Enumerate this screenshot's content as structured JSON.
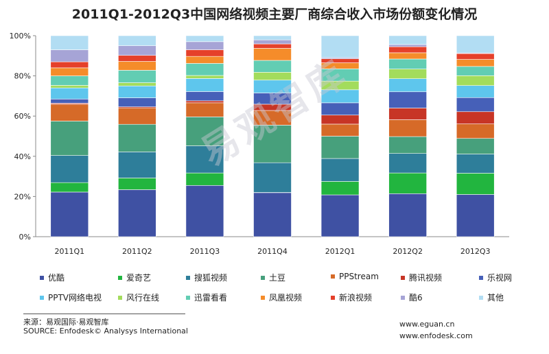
{
  "title": "2011Q1-2012Q3中国网络视频主要厂商综合收入市场份额变化情况",
  "watermark": "易观智库",
  "footer": {
    "source_cn": "来源：易观国际·易观智库",
    "source_en": "SOURCE: Enfodesk© Analysys International",
    "web1": "www.eguan.cn",
    "web2": "www.enfodesk.com"
  },
  "chart_data": {
    "type": "bar",
    "stacked": true,
    "percent": true,
    "categories": [
      "2011Q1",
      "2011Q2",
      "2011Q3",
      "2011Q4",
      "2012Q1",
      "2012Q2",
      "2012Q3"
    ],
    "y_ticks": [
      "0%",
      "20%",
      "40%",
      "60%",
      "80%",
      "100%"
    ],
    "ylim": [
      0,
      100
    ],
    "grid": false,
    "legend_position": "bottom",
    "series": [
      {
        "name": "优酷",
        "color": "#3F51A3",
        "values": [
          22.2,
          23.4,
          25.5,
          21.9,
          20.8,
          21.4,
          21.0
        ]
      },
      {
        "name": "爱奇艺",
        "color": "#22B53F",
        "values": [
          4.7,
          5.8,
          6.2,
          0.1,
          6.7,
          10.3,
          10.6
        ]
      },
      {
        "name": "搜狐视频",
        "color": "#2E7E9A",
        "values": [
          13.5,
          13.0,
          13.5,
          14.8,
          11.4,
          9.7,
          9.5
        ]
      },
      {
        "name": "土豆",
        "color": "#47A07C",
        "values": [
          17.1,
          13.7,
          14.4,
          18.7,
          11.1,
          8.4,
          7.8
        ]
      },
      {
        "name": "PPStream",
        "color": "#D66A28",
        "values": [
          8.4,
          8.2,
          7.0,
          7.3,
          6.0,
          8.4,
          7.2
        ]
      },
      {
        "name": "腾讯视频",
        "color": "#C73526",
        "values": [
          0.5,
          0.5,
          1.0,
          3.1,
          4.5,
          5.8,
          6.1
        ]
      },
      {
        "name": "乐视网",
        "color": "#4660B8",
        "values": [
          2.1,
          4.5,
          4.6,
          5.6,
          6.1,
          8.1,
          7.0
        ]
      },
      {
        "name": "PPTV网络电视",
        "color": "#5EC6ED",
        "values": [
          5.5,
          5.9,
          6.5,
          6.4,
          6.5,
          6.5,
          6.0
        ]
      },
      {
        "name": "风行在线",
        "color": "#A3DC5C",
        "values": [
          1.3,
          1.6,
          1.5,
          3.9,
          4.3,
          4.8,
          4.9
        ]
      },
      {
        "name": "迅雷看看",
        "color": "#62CDB3",
        "values": [
          4.7,
          6.2,
          6.0,
          5.9,
          6.1,
          5.0,
          4.6
        ]
      },
      {
        "name": "凤凰视频",
        "color": "#F58C2A",
        "values": [
          4.0,
          4.4,
          3.5,
          6.0,
          3.0,
          3.1,
          3.5
        ]
      },
      {
        "name": "新浪视频",
        "color": "#E5402A",
        "values": [
          3.0,
          3.0,
          3.3,
          2.2,
          2.0,
          3.0,
          2.9
        ]
      },
      {
        "name": "酷6",
        "color": "#A6A4D6",
        "values": [
          6.0,
          4.8,
          4.0,
          2.0,
          0.6,
          1.1,
          0.3
        ]
      },
      {
        "name": "其他",
        "color": "#B2DDF3",
        "values": [
          7.0,
          5.0,
          3.0,
          2.1,
          10.9,
          4.4,
          8.6
        ]
      }
    ]
  }
}
